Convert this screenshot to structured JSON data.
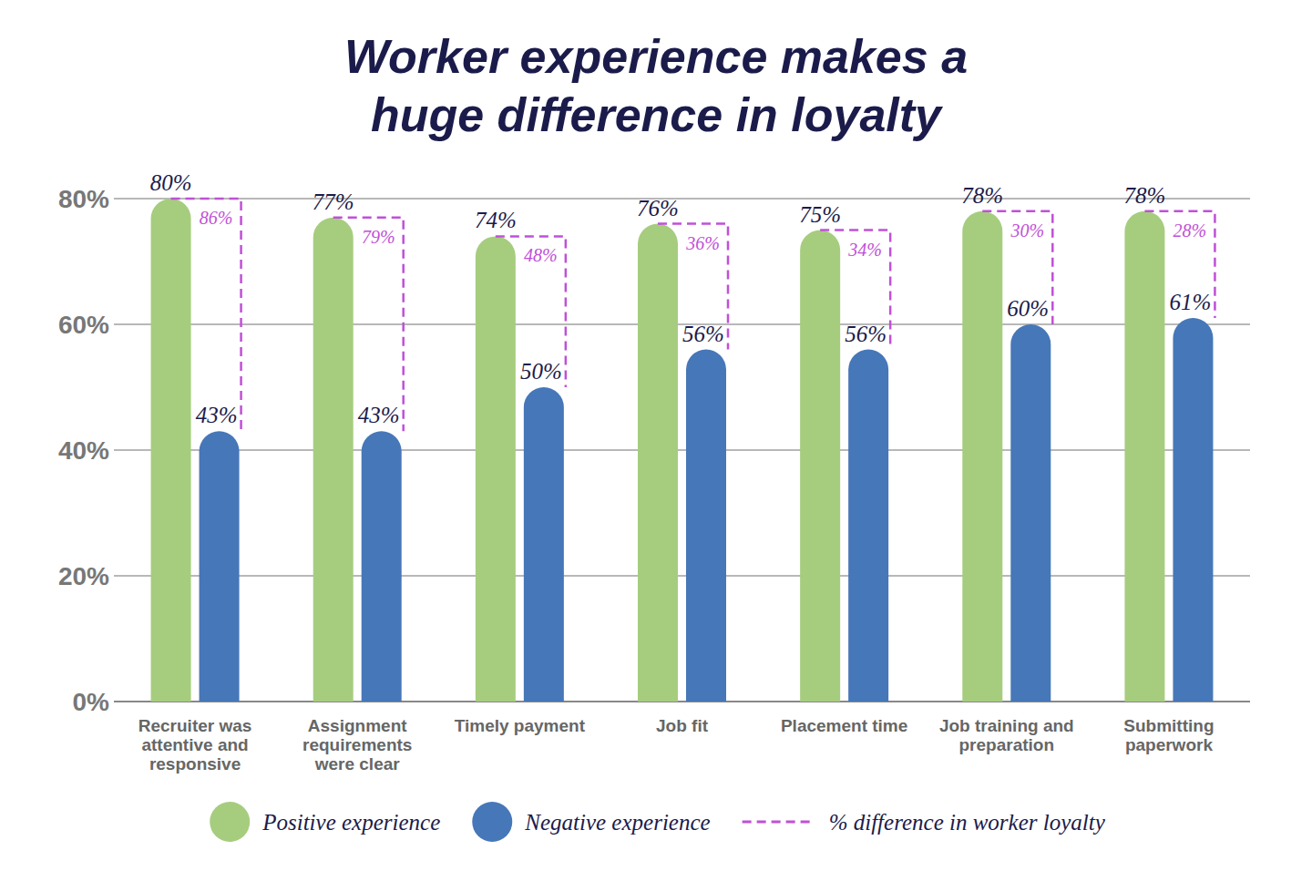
{
  "chart_data": {
    "type": "bar",
    "title": "Worker experience makes a huge difference in loyalty",
    "categories": [
      "Recruiter was attentive and responsive",
      "Assignment requirements were clear",
      "Timely payment",
      "Job fit",
      "Placement time",
      "Job training and preparation",
      "Submitting paperwork"
    ],
    "series": [
      {
        "name": "Positive experience",
        "color": "#a6cd7e",
        "values": [
          80,
          77,
          74,
          76,
          75,
          78,
          78
        ],
        "value_labels": [
          "80%",
          "77%",
          "74%",
          "76%",
          "75%",
          "78%",
          "78%"
        ]
      },
      {
        "name": "Negative experience",
        "color": "#4677b8",
        "values": [
          43,
          43,
          50,
          56,
          56,
          60,
          61
        ],
        "value_labels": [
          "43%",
          "43%",
          "50%",
          "56%",
          "56%",
          "60%",
          "61%"
        ]
      }
    ],
    "difference": {
      "name": "% difference in worker loyalty",
      "color": "#c050d8",
      "line_style": "dashed",
      "values": [
        86,
        79,
        48,
        36,
        34,
        30,
        28
      ],
      "value_labels": [
        "86%",
        "79%",
        "48%",
        "36%",
        "34%",
        "30%",
        "28%"
      ]
    },
    "ylim": [
      0,
      80
    ],
    "yticks": [
      {
        "value": 0,
        "label": "0%"
      },
      {
        "value": 20,
        "label": "20%"
      },
      {
        "value": 40,
        "label": "40%"
      },
      {
        "value": 60,
        "label": "60%"
      },
      {
        "value": 80,
        "label": "80%"
      }
    ],
    "grid": true,
    "data_labels": true,
    "legend": "bottom"
  }
}
